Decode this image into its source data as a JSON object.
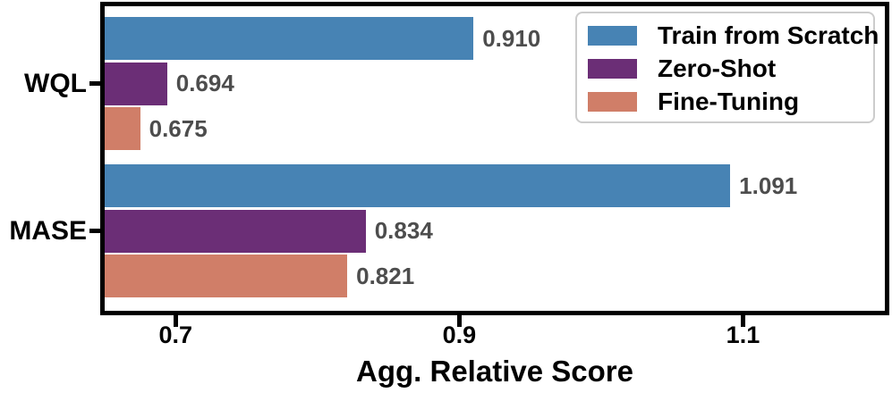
{
  "chart_data": {
    "type": "bar",
    "orientation": "horizontal",
    "title": "",
    "xlabel": "Agg. Relative Score",
    "ylabel": "",
    "categories": [
      "WQL",
      "MASE"
    ],
    "series": [
      {
        "name": "Train from Scratch",
        "color": "#4783B4",
        "values": [
          0.91,
          1.091
        ]
      },
      {
        "name": "Zero-Shot",
        "color": "#6B2E76",
        "values": [
          0.694,
          0.834
        ]
      },
      {
        "name": "Fine-Tuning",
        "color": "#D07E68",
        "values": [
          0.675,
          0.821
        ]
      }
    ],
    "value_labels": [
      [
        "0.910",
        "0.694",
        "0.675"
      ],
      [
        "1.091",
        "0.834",
        "0.821"
      ]
    ],
    "value_label_color": "#4D4D4D",
    "xticks": [
      0.7,
      0.9,
      1.1
    ],
    "xtick_labels": [
      "0.7",
      "0.9",
      "1.1"
    ],
    "xlim": [
      0.65,
      1.2
    ],
    "grid": false,
    "frame_color": "#000000",
    "legend": {
      "position": "upper-right",
      "entries": [
        "Train from Scratch",
        "Zero-Shot",
        "Fine-Tuning"
      ]
    }
  }
}
